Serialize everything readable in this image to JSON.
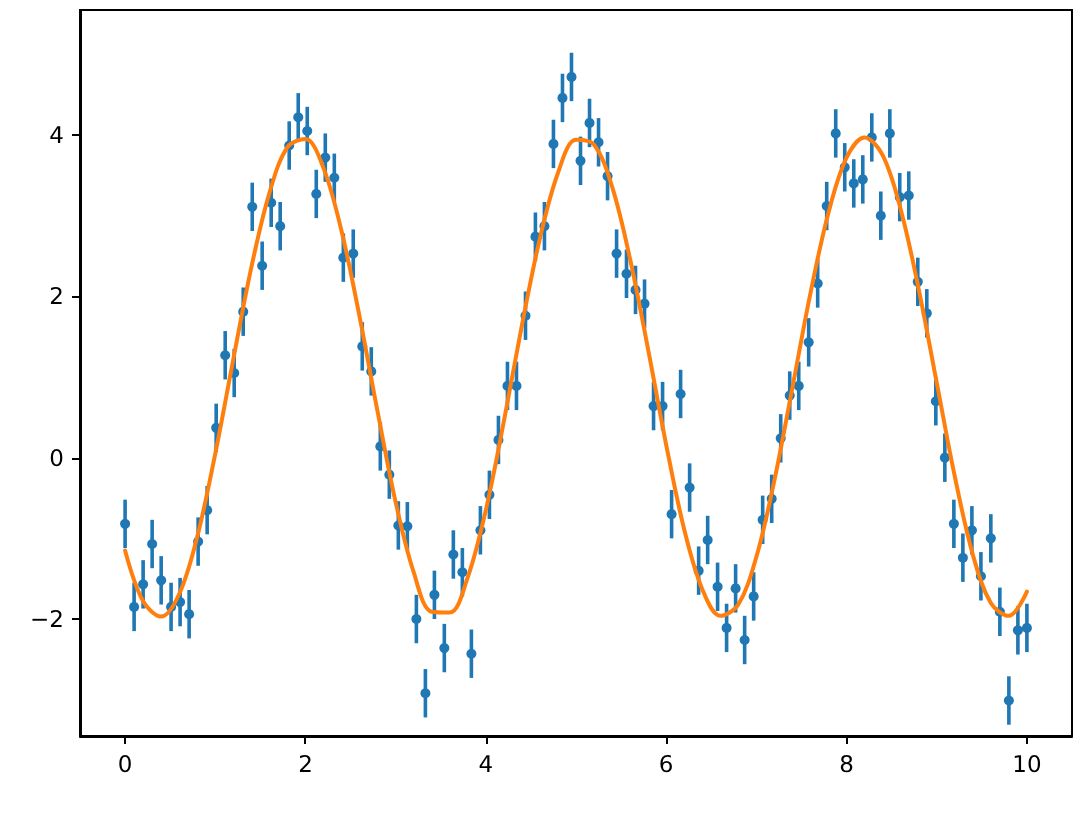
{
  "chart_data": {
    "type": "scatter",
    "xlim": [
      -0.5,
      10.5
    ],
    "ylim": [
      -3.45,
      5.55
    ],
    "xticks": [
      0,
      2,
      4,
      6,
      8,
      10
    ],
    "yticks": [
      {
        "value": -2,
        "label": "−2"
      },
      0,
      2,
      4
    ],
    "series": [
      {
        "color": "#1f77b4",
        "marker": "circle",
        "x": [
          0,
          0.1,
          0.2,
          0.3,
          0.4,
          0.51,
          0.61,
          0.71,
          0.81,
          0.91,
          1.01,
          1.11,
          1.21,
          1.31,
          1.41,
          1.52,
          1.62,
          1.72,
          1.82,
          1.92,
          2.02,
          2.12,
          2.22,
          2.32,
          2.42,
          2.53,
          2.63,
          2.73,
          2.83,
          2.93,
          3.03,
          3.13,
          3.23,
          3.33,
          3.43,
          3.54,
          3.64,
          3.74,
          3.84,
          3.94,
          4.04,
          4.14,
          4.24,
          4.34,
          4.44,
          4.55,
          4.65,
          4.75,
          4.85,
          4.95,
          5.05,
          5.15,
          5.25,
          5.35,
          5.45,
          5.56,
          5.66,
          5.76,
          5.86,
          5.96,
          6.06,
          6.16,
          6.26,
          6.36,
          6.46,
          6.57,
          6.67,
          6.77,
          6.87,
          6.97,
          7.07,
          7.17,
          7.27,
          7.37,
          7.47,
          7.58,
          7.68,
          7.78,
          7.88,
          7.98,
          8.08,
          8.18,
          8.28,
          8.38,
          8.48,
          8.59,
          8.69,
          8.79,
          8.89,
          8.99,
          9.09,
          9.19,
          9.29,
          9.39,
          9.49,
          9.6,
          9.7,
          9.8,
          9.9,
          10
        ],
        "values": [
          -0.82,
          -1.85,
          -1.57,
          -1.07,
          -1.52,
          -1.85,
          -1.79,
          -1.94,
          -1.04,
          -0.65,
          0.37,
          1.27,
          1.05,
          1.81,
          3.11,
          2.38,
          3.16,
          2.87,
          3.87,
          4.22,
          4.05,
          3.27,
          3.72,
          3.47,
          2.48,
          2.53,
          1.38,
          1.07,
          0.14,
          -0.21,
          -0.84,
          -0.85,
          -2.0,
          -2.92,
          -1.7,
          -2.36,
          -1.2,
          -1.42,
          -2.43,
          -0.9,
          -0.46,
          0.22,
          0.89,
          0.89,
          1.76,
          2.74,
          2.87,
          3.89,
          4.46,
          4.72,
          3.68,
          4.15,
          3.91,
          3.49,
          2.53,
          2.28,
          2.08,
          1.91,
          0.64,
          0.64,
          -0.7,
          0.79,
          -0.37,
          -1.4,
          -1.02,
          -1.6,
          -2.11,
          -1.62,
          -2.26,
          -1.72,
          -0.77,
          -0.51,
          0.24,
          0.77,
          0.89,
          1.43,
          2.16,
          3.12,
          4.02,
          3.6,
          3.4,
          3.45,
          3.97,
          3.0,
          4.02,
          3.23,
          3.25,
          2.18,
          1.79,
          0.7,
          0.0,
          -0.82,
          -1.24,
          -0.9,
          -1.47,
          -1.0,
          -1.91,
          -3.01,
          -2.14,
          -2.11
        ],
        "errors": [
          0.3,
          0.3,
          0.3,
          0.3,
          0.3,
          0.3,
          0.3,
          0.3,
          0.3,
          0.3,
          0.3,
          0.3,
          0.3,
          0.3,
          0.3,
          0.3,
          0.3,
          0.3,
          0.3,
          0.3,
          0.3,
          0.3,
          0.3,
          0.3,
          0.3,
          0.3,
          0.3,
          0.3,
          0.3,
          0.3,
          0.3,
          0.3,
          0.3,
          0.3,
          0.3,
          0.3,
          0.3,
          0.3,
          0.3,
          0.3,
          0.3,
          0.3,
          0.3,
          0.3,
          0.3,
          0.3,
          0.3,
          0.3,
          0.3,
          0.3,
          0.3,
          0.3,
          0.3,
          0.3,
          0.3,
          0.3,
          0.3,
          0.3,
          0.3,
          0.3,
          0.3,
          0.3,
          0.3,
          0.3,
          0.3,
          0.3,
          0.3,
          0.3,
          0.3,
          0.3,
          0.3,
          0.3,
          0.3,
          0.3,
          0.3,
          0.3,
          0.3,
          0.3,
          0.3,
          0.3,
          0.3,
          0.3,
          0.3,
          0.3,
          0.3,
          0.3,
          0.3,
          0.3,
          0.3,
          0.3,
          0.3,
          0.3,
          0.3,
          0.3,
          0.3,
          0.3,
          0.3,
          0.3,
          0.3,
          0.3
        ]
      },
      {
        "type": "line",
        "color": "#ff7f0e",
        "marker": "none",
        "x": [
          0,
          0.2,
          0.4,
          0.6,
          0.8,
          1.0,
          1.2,
          1.4,
          1.6,
          1.8,
          2.0,
          2.2,
          2.4,
          2.6,
          2.8,
          3.0,
          3.2,
          3.4,
          3.6,
          3.8,
          4.0,
          4.2,
          4.4,
          4.6,
          4.8,
          5.0,
          5.2,
          5.4,
          5.6,
          5.8,
          6.0,
          6.2,
          6.4,
          6.6,
          6.8,
          7.0,
          7.2,
          7.4,
          7.6,
          7.8,
          8.0,
          8.2,
          8.4,
          8.6,
          8.8,
          9.0,
          9.2,
          9.4,
          9.6,
          9.8,
          10.0
        ],
        "values": [
          -1.15,
          -1.78,
          -1.97,
          -1.69,
          -0.98,
          0.05,
          1.22,
          2.36,
          3.28,
          3.85,
          3.95,
          3.59,
          2.81,
          1.75,
          0.57,
          -0.55,
          -1.42,
          -1.91,
          -1.92,
          -1.48,
          -0.65,
          0.45,
          1.64,
          2.72,
          3.53,
          3.94,
          3.88,
          3.36,
          2.46,
          1.34,
          0.16,
          -0.89,
          -1.63,
          -1.96,
          -1.82,
          -1.23,
          -0.28,
          0.87,
          2.04,
          3.04,
          3.72,
          3.97,
          3.75,
          3.08,
          2.09,
          0.93,
          -0.23,
          -1.2,
          -1.8,
          -1.96,
          -1.66
        ]
      }
    ]
  }
}
